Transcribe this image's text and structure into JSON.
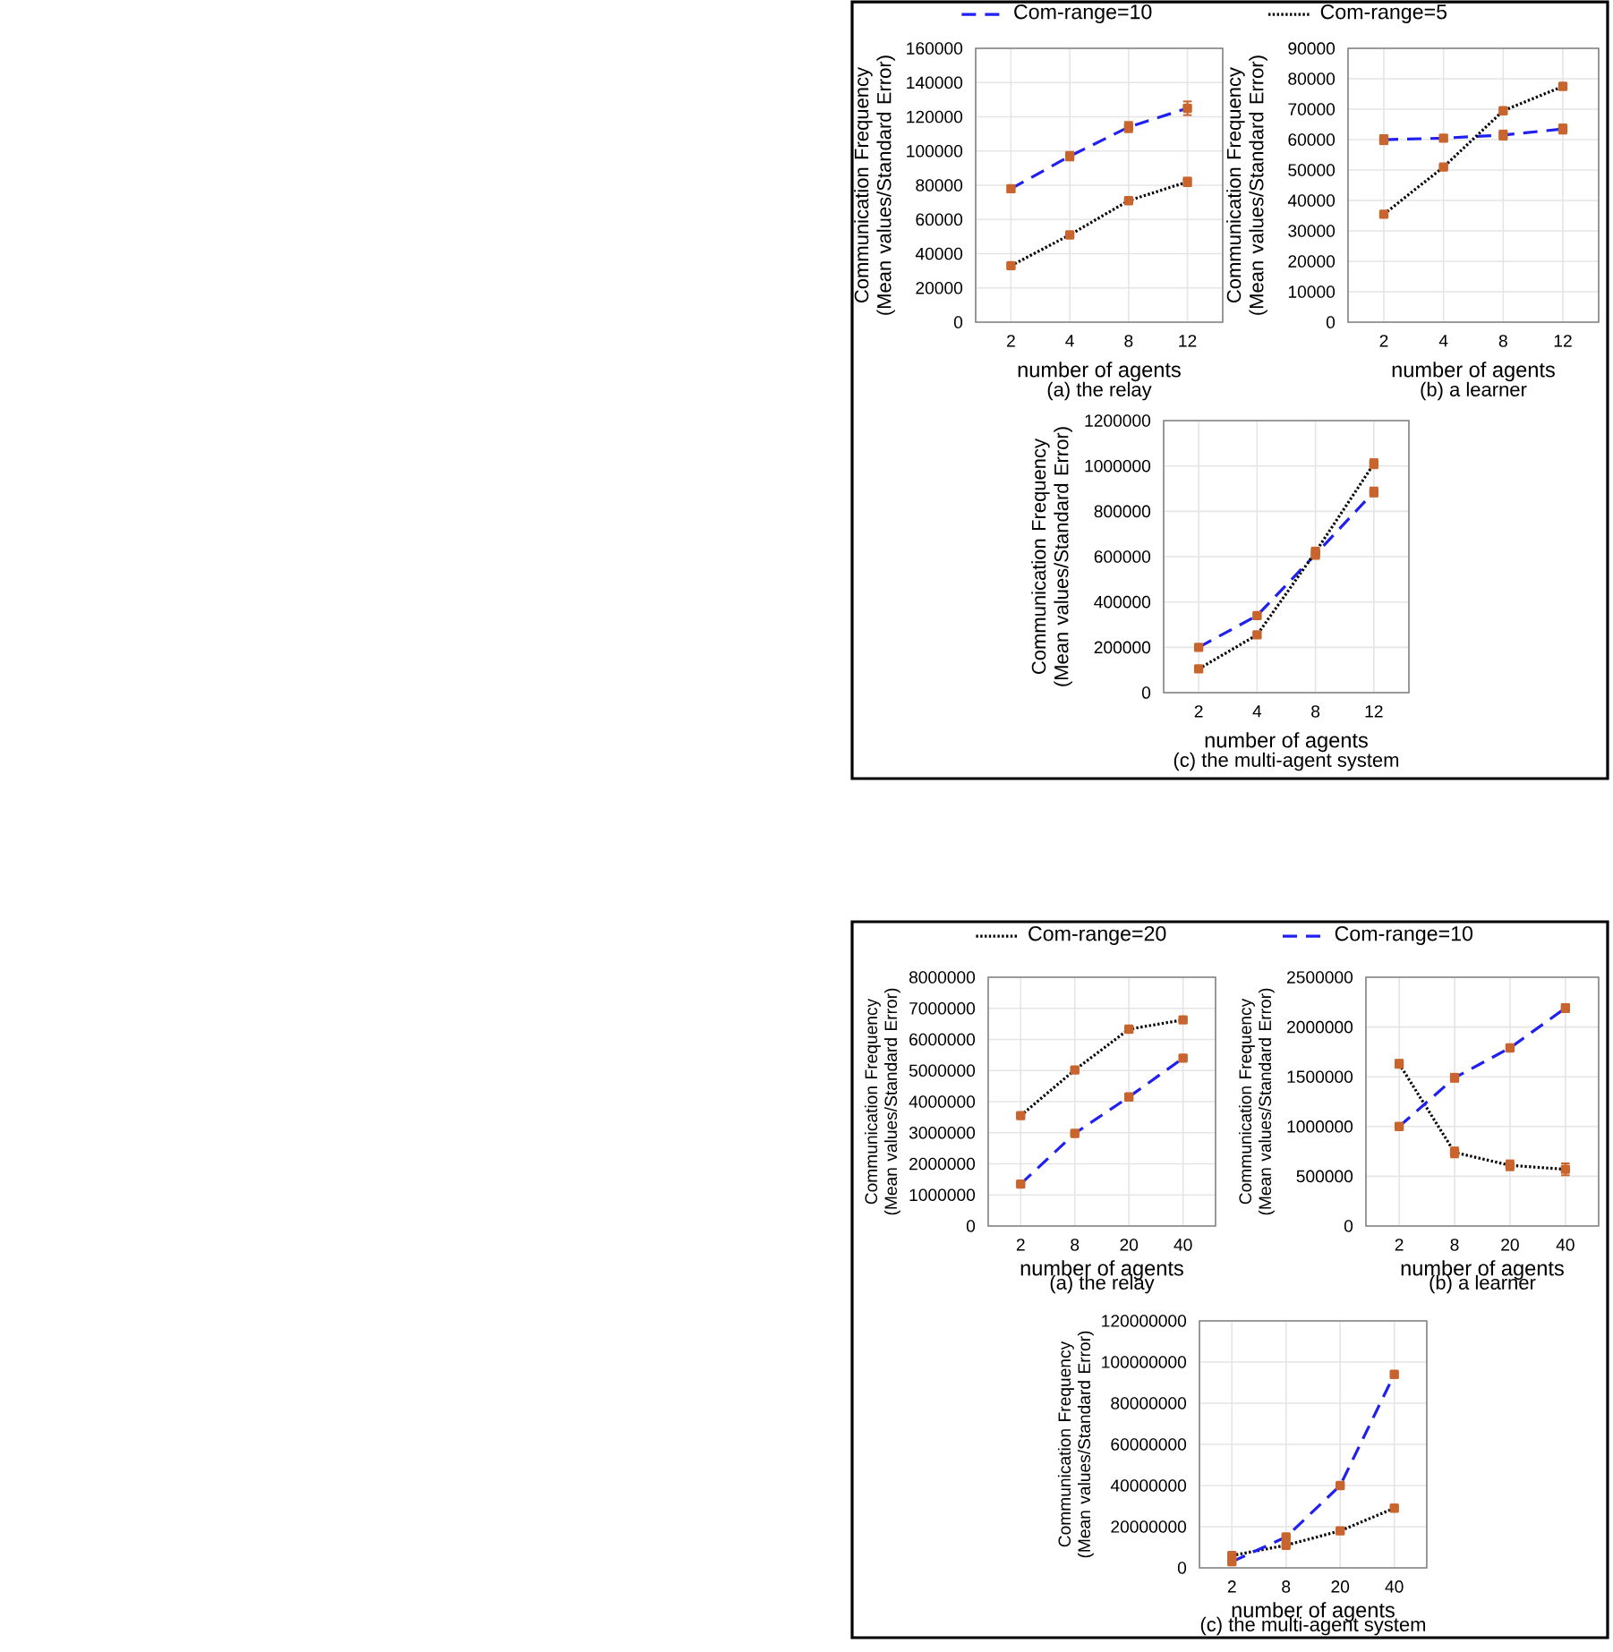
{
  "chart_data": [
    {
      "type": "line",
      "title": "(a) the relay",
      "xlabel": "number of agents",
      "ylabel": "Communication Frequency (Mean values/Standard Error)",
      "categories": [
        "2",
        "4",
        "8",
        "12"
      ],
      "ylim": [
        0,
        160000
      ],
      "yticks": [
        0,
        20000,
        40000,
        60000,
        80000,
        100000,
        120000,
        140000,
        160000
      ],
      "grid": true,
      "legend": "top",
      "marker": "square",
      "series": [
        {
          "name": "Com-range=10",
          "color": "#2020f0",
          "line_style": "dashed",
          "values": [
            78000,
            97000,
            114000,
            125000
          ],
          "errors": [
            2000,
            2500,
            3000,
            4000
          ]
        },
        {
          "name": "Com-range=5",
          "color": "#000000",
          "line_style": "dotted",
          "values": [
            33000,
            51000,
            71000,
            82000
          ],
          "errors": [
            1000,
            1500,
            1500,
            2500
          ]
        }
      ]
    },
    {
      "type": "line",
      "title": "(b) a learner",
      "xlabel": "number of agents",
      "ylabel": "Communication Frequency (Mean values/Standard Error)",
      "categories": [
        "2",
        "4",
        "8",
        "12"
      ],
      "ylim": [
        0,
        90000
      ],
      "yticks": [
        0,
        10000,
        20000,
        30000,
        40000,
        50000,
        60000,
        70000,
        80000,
        90000
      ],
      "grid": true,
      "marker": "square",
      "series": [
        {
          "color": "#2020f0",
          "line_style": "dashed",
          "values": [
            60000,
            60500,
            61500,
            63500
          ],
          "errors": [
            1500,
            1000,
            1500,
            1500
          ]
        },
        {
          "color": "#000000",
          "line_style": "dotted",
          "values": [
            35500,
            51000,
            69500,
            77500
          ],
          "errors": [
            500,
            500,
            1000,
            1000
          ]
        }
      ]
    },
    {
      "type": "line",
      "title": "(c) the multi-agent system",
      "xlabel": "number of agents",
      "ylabel": "Communication Frequency (Mean values/Standard Error)",
      "categories": [
        "2",
        "4",
        "8",
        "12"
      ],
      "ylim": [
        0,
        1200000
      ],
      "yticks": [
        0,
        200000,
        400000,
        600000,
        800000,
        1000000,
        1200000
      ],
      "grid": true,
      "marker": "square",
      "series": [
        {
          "color": "#2020f0",
          "line_style": "dashed",
          "values": [
            200000,
            340000,
            610000,
            885000
          ],
          "errors": [
            8000,
            8000,
            20000,
            20000
          ]
        },
        {
          "color": "#000000",
          "line_style": "dotted",
          "values": [
            105000,
            255000,
            620000,
            1010000
          ],
          "errors": [
            5000,
            8000,
            20000,
            20000
          ]
        }
      ]
    },
    {
      "type": "line",
      "title": "(a) the relay",
      "xlabel": "number of agents",
      "ylabel": "Communication Frequency (Mean values/Standard Error)",
      "categories": [
        "2",
        "8",
        "20",
        "40"
      ],
      "ylim": [
        0,
        8000000
      ],
      "yticks": [
        0,
        1000000,
        2000000,
        3000000,
        4000000,
        5000000,
        6000000,
        7000000,
        8000000
      ],
      "grid": true,
      "legend": "top",
      "marker": "square",
      "series": [
        {
          "name": "Com-range=20",
          "color": "#000000",
          "line_style": "dotted",
          "values": [
            3550000,
            5020000,
            6330000,
            6630000
          ],
          "errors": [
            60000,
            40000,
            40000,
            30000
          ]
        },
        {
          "name": "Com-range=10",
          "color": "#2020f0",
          "line_style": "dashed",
          "values": [
            1350000,
            2980000,
            4150000,
            5400000
          ],
          "errors": [
            30000,
            40000,
            40000,
            60000
          ]
        }
      ]
    },
    {
      "type": "line",
      "title": "(b) a learner",
      "xlabel": "number of agents",
      "ylabel": "Communication Frequency (Mean values/Standard Error)",
      "categories": [
        "2",
        "8",
        "20",
        "40"
      ],
      "ylim": [
        0,
        2500000
      ],
      "yticks": [
        0,
        500000,
        1000000,
        1500000,
        2000000,
        2500000
      ],
      "grid": true,
      "marker": "square",
      "series": [
        {
          "color": "#000000",
          "line_style": "dotted",
          "values": [
            1630000,
            740000,
            610000,
            570000
          ],
          "errors": [
            40000,
            50000,
            50000,
            60000
          ]
        },
        {
          "color": "#2020f0",
          "line_style": "dashed",
          "values": [
            1000000,
            1490000,
            1790000,
            2190000
          ],
          "errors": [
            20000,
            40000,
            30000,
            40000
          ]
        }
      ]
    },
    {
      "type": "line",
      "title": "(c) the multi-agent system",
      "xlabel": "number of agents",
      "ylabel": "Communication Frequency (Mean values/Standard Error)",
      "categories": [
        "2",
        "8",
        "20",
        "40"
      ],
      "ylim": [
        0,
        120000000
      ],
      "yticks": [
        0,
        20000000,
        40000000,
        60000000,
        80000000,
        100000000,
        120000000
      ],
      "grid": true,
      "marker": "square",
      "series": [
        {
          "color": "#000000",
          "line_style": "dotted",
          "values": [
            6000000,
            11000000,
            18000000,
            29000000
          ]
        },
        {
          "color": "#2020f0",
          "line_style": "dashed",
          "values": [
            3000000,
            15000000,
            40000000,
            94000000
          ]
        }
      ]
    }
  ]
}
